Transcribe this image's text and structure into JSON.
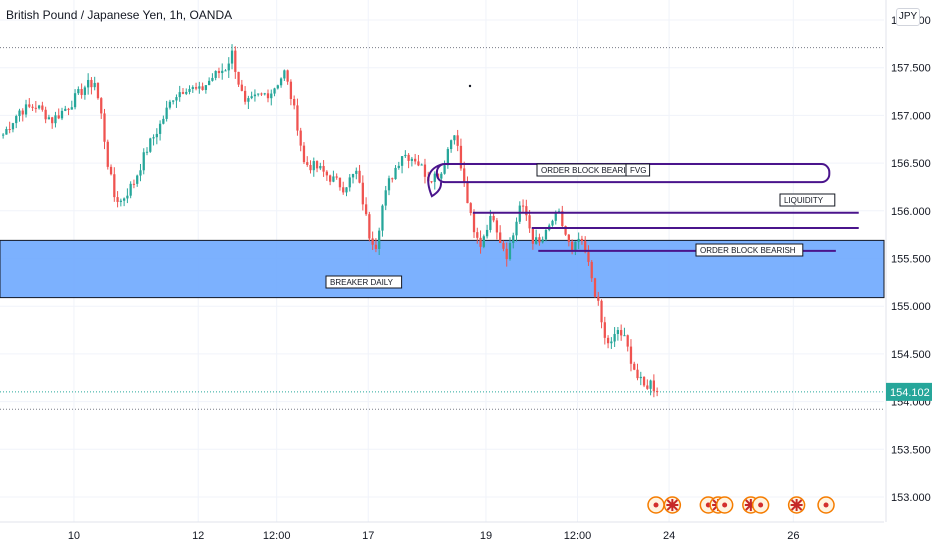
{
  "header": {
    "title": "British Pound / Japanese Yen, 1h, OANDA",
    "currency_label": "JPY"
  },
  "colors": {
    "up": "#26a69a",
    "down": "#ef5350",
    "zone_fill": "#6ea8fe",
    "zone_border": "#131722",
    "annotation_line": "#4a148c",
    "last_price_bg": "#26a69a",
    "event_marker": "#f57c00"
  },
  "chart_data": {
    "type": "candlestick",
    "y_axis": {
      "ticks": [
        "153.000",
        "153.500",
        "154.000",
        "154.500",
        "155.000",
        "155.500",
        "156.000",
        "156.500",
        "157.000",
        "157.500",
        "158.000"
      ],
      "tick_values": [
        153.0,
        153.5,
        154.0,
        154.5,
        155.0,
        155.5,
        156.0,
        156.5,
        157.0,
        157.5,
        158.0
      ],
      "range": [
        152.95,
        158.5
      ]
    },
    "x_axis": {
      "labels": [
        "10",
        "12",
        "12:00",
        "17",
        "19",
        "12:00",
        "24",
        "26"
      ],
      "label_index": [
        22,
        60,
        84,
        112,
        148,
        176,
        204,
        242
      ]
    },
    "last_price": "154.102",
    "close_path": [
      [
        0,
        156.8
      ],
      [
        5,
        157.05
      ],
      [
        10,
        157.1
      ],
      [
        15,
        156.95
      ],
      [
        20,
        157.1
      ],
      [
        25,
        157.3
      ],
      [
        28,
        157.35
      ],
      [
        30,
        157.0
      ],
      [
        32,
        156.5
      ],
      [
        34,
        156.15
      ],
      [
        36,
        156.1
      ],
      [
        40,
        156.3
      ],
      [
        44,
        156.65
      ],
      [
        48,
        156.9
      ],
      [
        52,
        157.2
      ],
      [
        56,
        157.3
      ],
      [
        60,
        157.25
      ],
      [
        64,
        157.4
      ],
      [
        68,
        157.5
      ],
      [
        70,
        157.65
      ],
      [
        72,
        157.35
      ],
      [
        74,
        157.1
      ],
      [
        78,
        157.2
      ],
      [
        82,
        157.25
      ],
      [
        86,
        157.45
      ],
      [
        88,
        157.2
      ],
      [
        90,
        156.9
      ],
      [
        92,
        156.5
      ],
      [
        96,
        156.45
      ],
      [
        100,
        156.35
      ],
      [
        104,
        156.25
      ],
      [
        108,
        156.4
      ],
      [
        110,
        156.1
      ],
      [
        112,
        155.75
      ],
      [
        114,
        155.65
      ],
      [
        116,
        156.05
      ],
      [
        118,
        156.3
      ],
      [
        122,
        156.6
      ],
      [
        126,
        156.55
      ],
      [
        130,
        156.35
      ],
      [
        134,
        156.4
      ],
      [
        136,
        156.65
      ],
      [
        138,
        156.85
      ],
      [
        140,
        156.45
      ],
      [
        142,
        156.1
      ],
      [
        144,
        155.75
      ],
      [
        146,
        155.65
      ],
      [
        148,
        155.85
      ],
      [
        150,
        155.95
      ],
      [
        152,
        155.7
      ],
      [
        154,
        155.55
      ],
      [
        156,
        155.75
      ],
      [
        158,
        156.05
      ],
      [
        160,
        155.95
      ],
      [
        162,
        155.7
      ],
      [
        164,
        155.65
      ],
      [
        166,
        155.75
      ],
      [
        168,
        155.9
      ],
      [
        170,
        155.95
      ],
      [
        172,
        155.75
      ],
      [
        174,
        155.55
      ],
      [
        176,
        155.7
      ],
      [
        178,
        155.55
      ],
      [
        180,
        155.3
      ],
      [
        182,
        155.0
      ],
      [
        184,
        154.65
      ],
      [
        186,
        154.6
      ],
      [
        188,
        154.75
      ],
      [
        190,
        154.65
      ],
      [
        192,
        154.45
      ],
      [
        194,
        154.25
      ],
      [
        196,
        154.15
      ],
      [
        198,
        154.2
      ],
      [
        200,
        154.1
      ]
    ],
    "events_index": [
      200,
      205,
      216,
      219,
      221,
      229,
      232,
      243,
      252
    ]
  },
  "zones": {
    "breaker": {
      "label": "BREAKER DAILY",
      "top": 155.69,
      "bottom": 155.09
    }
  },
  "annotations": {
    "fvg_label": "FVG",
    "ob_label_1": "ORDER BLOCK BEARISH",
    "liquidity_label": "LIQUIDITY",
    "ob_label_2": "ORDER BLOCK BEARISH",
    "fvg_box": {
      "x0": 133,
      "x1": 253,
      "top": 156.49,
      "bottom": 156.3
    },
    "liquidity_line": {
      "x0": 144,
      "x1": 262,
      "price": 155.98
    },
    "ob_line_1": {
      "x0": 162,
      "x1": 262,
      "price": 155.82
    },
    "ob_line_2": {
      "x0": 164,
      "x1": 255,
      "price": 155.58
    },
    "high_dotted": 157.71,
    "low_dotted": 153.92
  }
}
